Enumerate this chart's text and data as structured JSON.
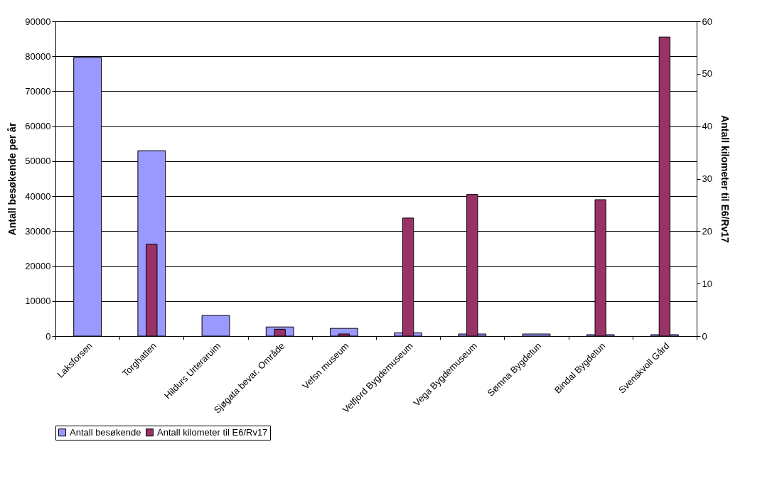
{
  "chart_data": {
    "type": "bar",
    "categories": [
      "Laksforsen",
      "Torghatten",
      "Hildurs Urteraruim",
      "Sjøgata bevar. Område",
      "Vefsn museum",
      "Velfjord Bygdemuseum",
      "Vega Bygdemuseum",
      "Sømna Bygdetun",
      "Bindal Bygdetun",
      "Svenskvoll Gård"
    ],
    "series": [
      {
        "name": "Antall besøkende",
        "color": "#9999ff",
        "values": [
          79700,
          53000,
          5900,
          2600,
          2200,
          900,
          600,
          600,
          400,
          400
        ]
      },
      {
        "name": "Antall kilometer til E6/Rv17",
        "color": "#993366",
        "axis": "y2",
        "values": [
          0,
          17.5,
          0,
          1.3,
          0.4,
          22.5,
          27,
          0,
          26,
          57
        ]
      }
    ],
    "ylabel": "Antall besøkende per år",
    "y2label": "Antall kilometer til E6/Rv17",
    "ylim": [
      0,
      90000
    ],
    "yticks": [
      0,
      10000,
      20000,
      30000,
      40000,
      50000,
      60000,
      70000,
      80000,
      90000
    ],
    "y2lim": [
      0,
      60
    ],
    "y2ticks": [
      0,
      10,
      20,
      30,
      40,
      50,
      60
    ],
    "grid": "y",
    "legend": "bottom"
  }
}
